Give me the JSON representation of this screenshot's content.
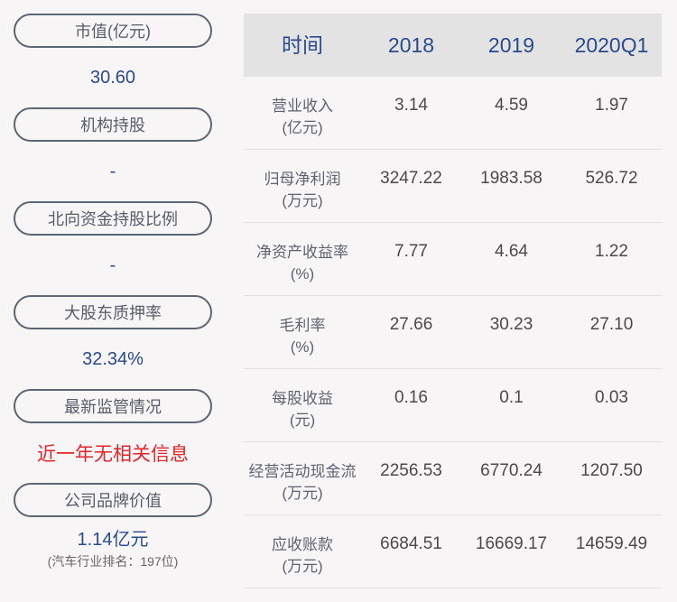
{
  "left": [
    {
      "label": "市值(亿元)",
      "value": "30.60"
    },
    {
      "label": "机构持股",
      "value": "-"
    },
    {
      "label": "北向资金持股比例",
      "value": "-"
    },
    {
      "label": "大股东质押率",
      "value": "32.34%"
    },
    {
      "label": "最新监管情况",
      "value": "近一年无相关信息"
    },
    {
      "label": "公司品牌价值",
      "value": "1.14亿元",
      "sub": "(汽车行业排名：197位)"
    }
  ],
  "table": {
    "header": [
      "时间",
      "2018",
      "2019",
      "2020Q1"
    ],
    "rows": [
      {
        "name": "营业收入",
        "unit": "(亿元)",
        "v": [
          "3.14",
          "4.59",
          "1.97"
        ]
      },
      {
        "name": "归母净利润",
        "unit": "(万元)",
        "v": [
          "3247.22",
          "1983.58",
          "526.72"
        ]
      },
      {
        "name": "净资产收益率",
        "unit": "(%)",
        "v": [
          "7.77",
          "4.64",
          "1.22"
        ]
      },
      {
        "name": "毛利率",
        "unit": "(%)",
        "v": [
          "27.66",
          "30.23",
          "27.10"
        ]
      },
      {
        "name": "每股收益",
        "unit": "(元)",
        "v": [
          "0.16",
          "0.1",
          "0.03"
        ]
      },
      {
        "name": "经营活动现金流",
        "unit": "(万元)",
        "v": [
          "2256.53",
          "6770.24",
          "1207.50"
        ]
      },
      {
        "name": "应收账款",
        "unit": "(万元)",
        "v": [
          "6684.51",
          "16669.17",
          "14659.49"
        ]
      }
    ]
  }
}
